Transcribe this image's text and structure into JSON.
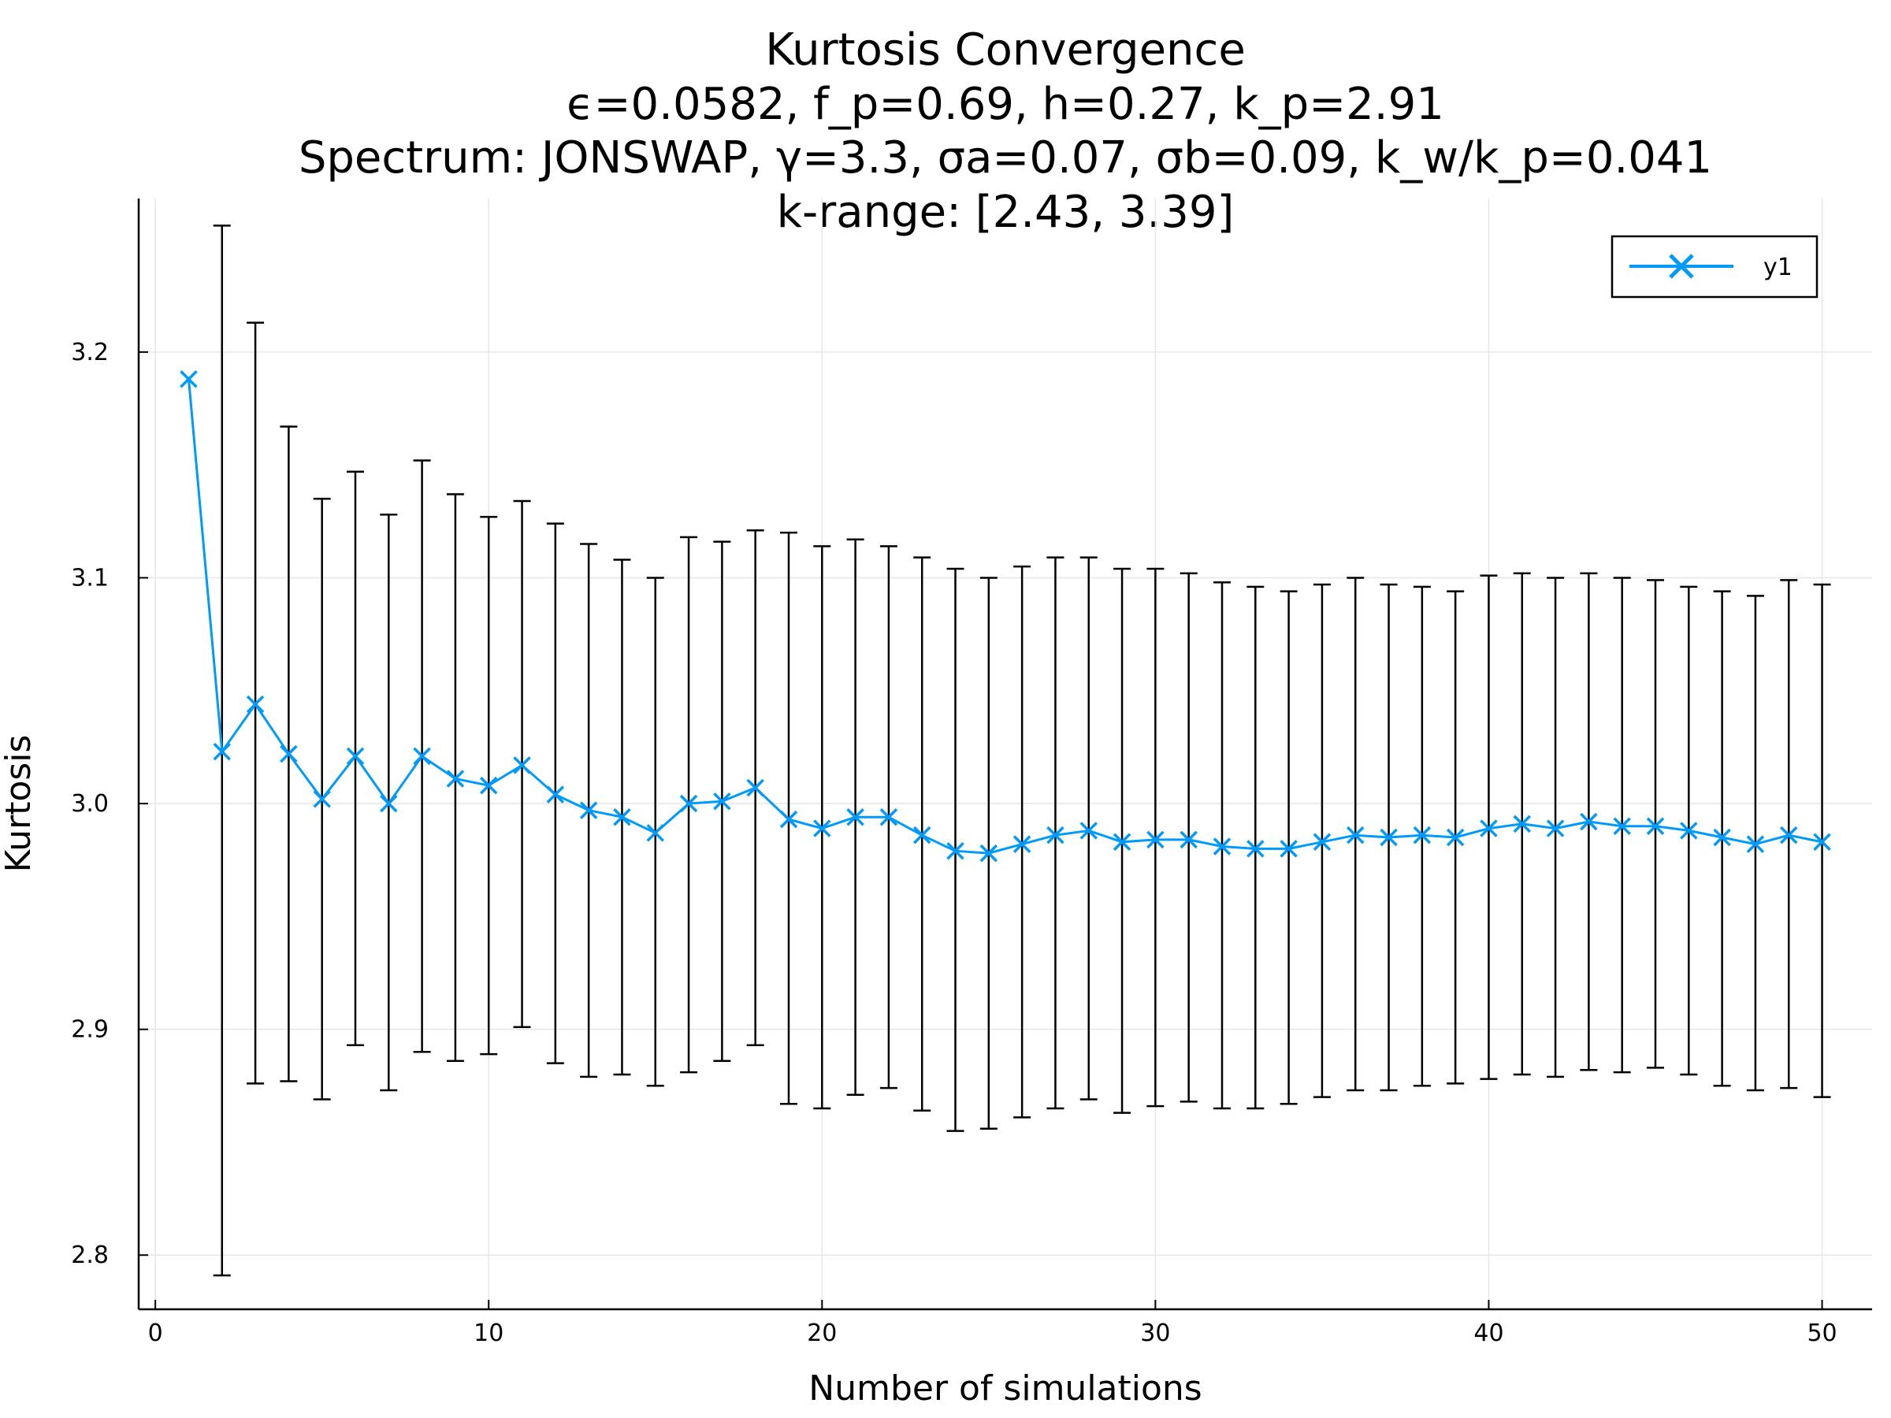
{
  "chart_data": {
    "type": "line",
    "title_lines": [
      "Kurtosis Convergence",
      "ϵ=0.0582, f_p=0.69, h=0.27, k_p=2.91",
      "Spectrum: JONSWAP, γ=3.3, σa=0.07, σb=0.09, k_w/k_p=0.041",
      "k-range: [2.43, 3.39]"
    ],
    "xlabel": "Number of simulations",
    "ylabel": "Kurtosis",
    "xlim": [
      -0.5,
      51.5
    ],
    "ylim": [
      2.776,
      3.268
    ],
    "xticks": [
      0,
      10,
      20,
      30,
      40,
      50
    ],
    "yticks": [
      2.8,
      2.9,
      3.0,
      3.1,
      3.2
    ],
    "xtick_labels": [
      "0",
      "10",
      "20",
      "30",
      "40",
      "50"
    ],
    "ytick_labels": [
      "2.8",
      "2.9",
      "3.0",
      "3.1",
      "3.2"
    ],
    "grid": true,
    "legend_position": "top-right",
    "series": [
      {
        "name": "y1",
        "color": "#009AFA",
        "marker": "x",
        "x": [
          1,
          2,
          3,
          4,
          5,
          6,
          7,
          8,
          9,
          10,
          11,
          12,
          13,
          14,
          15,
          16,
          17,
          18,
          19,
          20,
          21,
          22,
          23,
          24,
          25,
          26,
          27,
          28,
          29,
          30,
          31,
          32,
          33,
          34,
          35,
          36,
          37,
          38,
          39,
          40,
          41,
          42,
          43,
          44,
          45,
          46,
          47,
          48,
          49,
          50
        ],
        "y": [
          3.188,
          3.023,
          3.044,
          3.022,
          3.002,
          3.021,
          3.0,
          3.021,
          3.011,
          3.008,
          3.017,
          3.004,
          2.997,
          2.994,
          2.987,
          3.0,
          3.001,
          3.007,
          2.993,
          2.989,
          2.994,
          2.994,
          2.986,
          2.979,
          2.978,
          2.982,
          2.986,
          2.988,
          2.983,
          2.984,
          2.984,
          2.981,
          2.98,
          2.98,
          2.983,
          2.986,
          2.985,
          2.986,
          2.985,
          2.989,
          2.991,
          2.989,
          2.992,
          2.99,
          2.99,
          2.988,
          2.985,
          2.982,
          2.986,
          2.983
        ],
        "error_lower": [
          null,
          2.791,
          2.876,
          2.877,
          2.869,
          2.893,
          2.873,
          2.89,
          2.886,
          2.889,
          2.901,
          2.885,
          2.879,
          2.88,
          2.875,
          2.881,
          2.886,
          2.893,
          2.867,
          2.865,
          2.871,
          2.874,
          2.864,
          2.855,
          2.856,
          2.861,
          2.865,
          2.869,
          2.863,
          2.866,
          2.868,
          2.865,
          2.865,
          2.867,
          2.87,
          2.873,
          2.873,
          2.875,
          2.876,
          2.878,
          2.88,
          2.879,
          2.882,
          2.881,
          2.883,
          2.88,
          2.875,
          2.873,
          2.874,
          2.87
        ],
        "error_upper": [
          null,
          3.256,
          3.213,
          3.167,
          3.135,
          3.147,
          3.128,
          3.152,
          3.137,
          3.127,
          3.134,
          3.124,
          3.115,
          3.108,
          3.1,
          3.118,
          3.116,
          3.121,
          3.12,
          3.114,
          3.117,
          3.114,
          3.109,
          3.104,
          3.1,
          3.105,
          3.109,
          3.109,
          3.104,
          3.104,
          3.102,
          3.098,
          3.096,
          3.094,
          3.097,
          3.1,
          3.097,
          3.096,
          3.094,
          3.101,
          3.102,
          3.1,
          3.102,
          3.1,
          3.099,
          3.096,
          3.094,
          3.092,
          3.099,
          3.097
        ]
      }
    ]
  }
}
